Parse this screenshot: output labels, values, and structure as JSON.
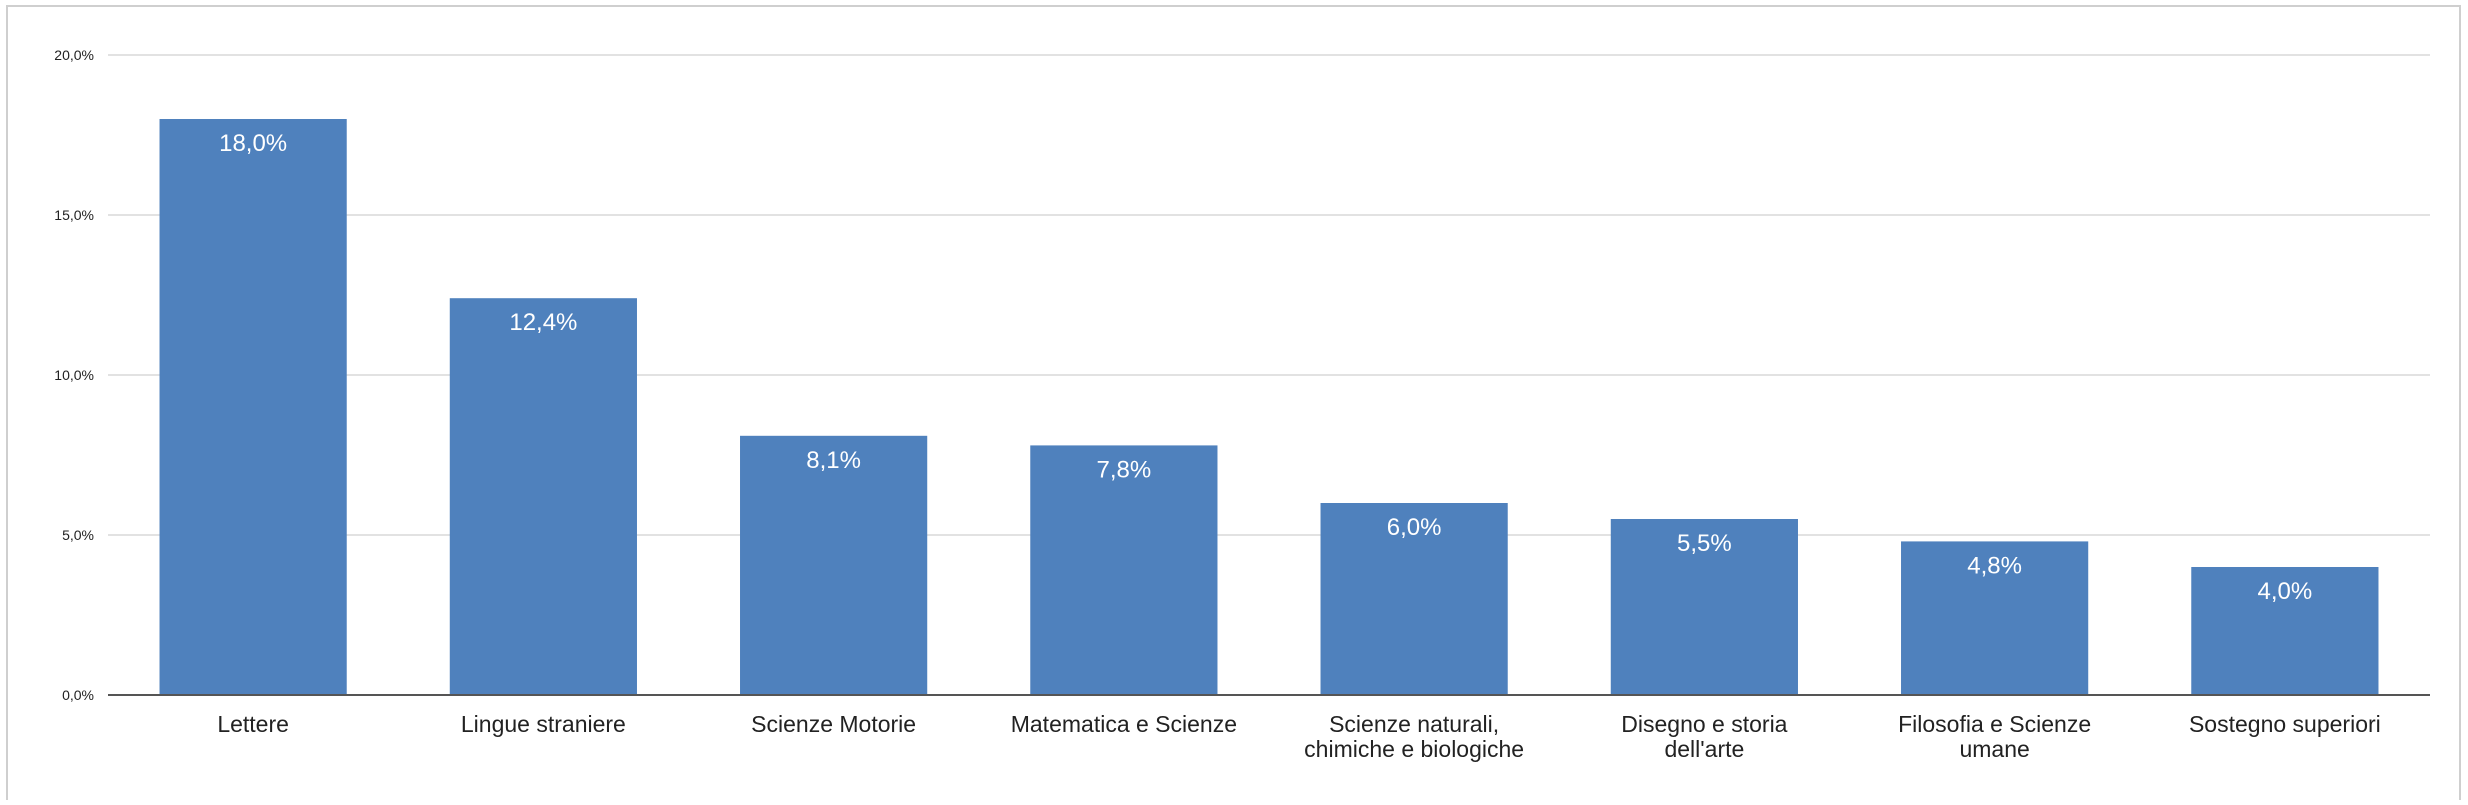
{
  "chart_data": {
    "type": "bar",
    "title": "",
    "xlabel": "",
    "ylabel": "",
    "categories": [
      [
        "Lettere"
      ],
      [
        "Lingue straniere"
      ],
      [
        "Scienze Motorie"
      ],
      [
        "Matematica e Scienze"
      ],
      [
        "Scienze naturali,",
        "chimiche e biologiche"
      ],
      [
        "Disegno e storia",
        "dell'arte"
      ],
      [
        "Filosofia e Scienze",
        "umane"
      ],
      [
        "Sostegno superiori"
      ]
    ],
    "values": [
      18.0,
      12.4,
      8.1,
      7.8,
      6.0,
      5.5,
      4.8,
      4.0
    ],
    "value_labels": [
      "18,0%",
      "12,4%",
      "8,1%",
      "7,8%",
      "6,0%",
      "5,5%",
      "4,8%",
      "4,0%"
    ],
    "ylim": [
      0,
      20
    ],
    "y_ticks": [
      0,
      5,
      10,
      15,
      20
    ],
    "y_tick_labels": [
      "0,0%",
      "5,0%",
      "10,0%",
      "15,0%",
      "20,0%"
    ],
    "grid": true,
    "legend": "none",
    "colors": {
      "bar": "#4f81bd",
      "grid": "#d9d9d9",
      "axis": "#555555",
      "value_label": "#ffffff",
      "text": "#222222"
    }
  }
}
